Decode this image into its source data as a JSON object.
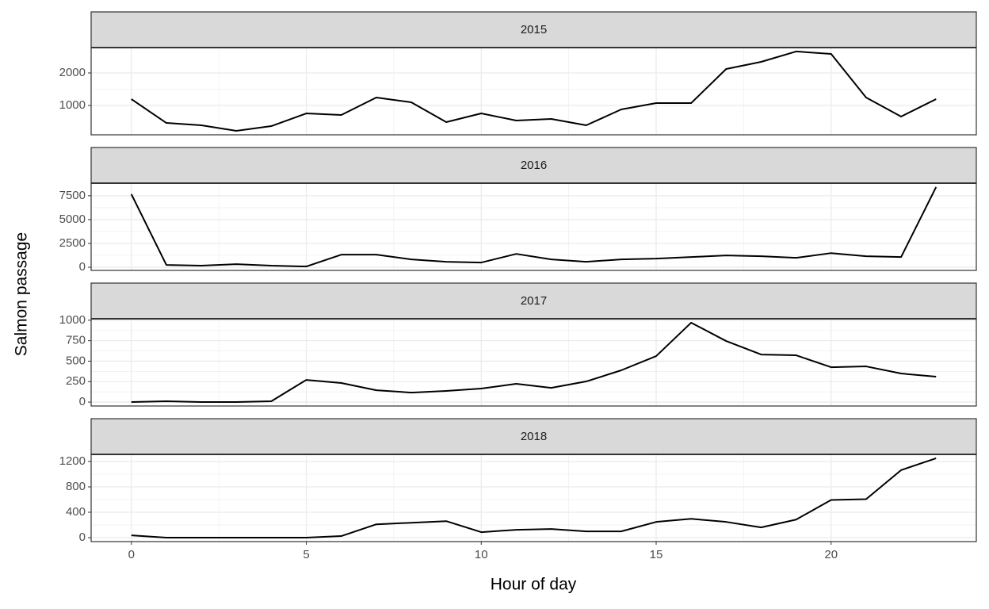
{
  "x_label": "Hour of day",
  "y_label": "Salmon passage",
  "chart_data": [
    {
      "type": "line",
      "title": "2015",
      "color": "#000000",
      "grid": true,
      "x": [
        0,
        1,
        2,
        3,
        4,
        5,
        6,
        7,
        8,
        9,
        10,
        11,
        12,
        13,
        14,
        15,
        16,
        17,
        18,
        19,
        20,
        21,
        22,
        23
      ],
      "values": [
        1195,
        463,
        390,
        220,
        366,
        756,
        707,
        1244,
        1098,
        488,
        756,
        537,
        585,
        390,
        878,
        1073,
        1073,
        2122,
        2341,
        2660,
        2585,
        1244,
        659,
        1195
      ],
      "xlim": [
        -1.15,
        24.15
      ],
      "xticks": [
        0,
        5,
        10,
        15,
        20
      ],
      "ylim": [
        98,
        2780
      ],
      "yticks": [
        1000,
        2000
      ]
    },
    {
      "type": "line",
      "title": "2016",
      "color": "#000000",
      "grid": true,
      "x": [
        0,
        1,
        2,
        3,
        4,
        5,
        6,
        7,
        8,
        9,
        10,
        11,
        12,
        13,
        14,
        15,
        16,
        17,
        18,
        19,
        20,
        21,
        22,
        23
      ],
      "values": [
        7666,
        247,
        165,
        330,
        165,
        82,
        1319,
        1319,
        824,
        577,
        495,
        1401,
        824,
        577,
        824,
        907,
        1072,
        1236,
        1154,
        989,
        1484,
        1154,
        1072,
        8408
      ],
      "xlim": [
        -1.15,
        24.15
      ],
      "xticks": [
        0,
        5,
        10,
        15,
        20
      ],
      "ylim": [
        -330,
        8820
      ],
      "yticks": [
        0,
        2500,
        5000,
        7500
      ]
    },
    {
      "type": "line",
      "title": "2017",
      "color": "#000000",
      "grid": true,
      "x": [
        0,
        1,
        2,
        3,
        4,
        5,
        6,
        7,
        8,
        9,
        10,
        11,
        12,
        13,
        14,
        15,
        16,
        17,
        18,
        19,
        20,
        21,
        22,
        23
      ],
      "values": [
        0,
        10,
        0,
        0,
        10,
        271,
        233,
        145,
        116,
        136,
        165,
        223,
        174,
        252,
        388,
        562,
        970,
        746,
        581,
        572,
        426,
        436,
        349,
        310
      ],
      "xlim": [
        -1.15,
        24.15
      ],
      "xticks": [
        0,
        5,
        10,
        15,
        20
      ],
      "ylim": [
        -48,
        1018
      ],
      "yticks": [
        0,
        250,
        500,
        750,
        1000
      ]
    },
    {
      "type": "line",
      "title": "2018",
      "color": "#000000",
      "grid": true,
      "x": [
        0,
        1,
        2,
        3,
        4,
        5,
        6,
        7,
        8,
        9,
        10,
        11,
        12,
        13,
        14,
        15,
        16,
        17,
        18,
        19,
        20,
        21,
        22,
        23
      ],
      "values": [
        37,
        0,
        0,
        0,
        0,
        0,
        25,
        210,
        235,
        260,
        87,
        124,
        136,
        99,
        99,
        248,
        297,
        248,
        161,
        285,
        594,
        606,
        1064,
        1250
      ],
      "xlim": [
        -1.15,
        24.15
      ],
      "xticks": [
        0,
        5,
        10,
        15,
        20
      ],
      "ylim": [
        -62,
        1312
      ],
      "yticks": [
        0,
        400,
        800,
        1200
      ]
    }
  ]
}
